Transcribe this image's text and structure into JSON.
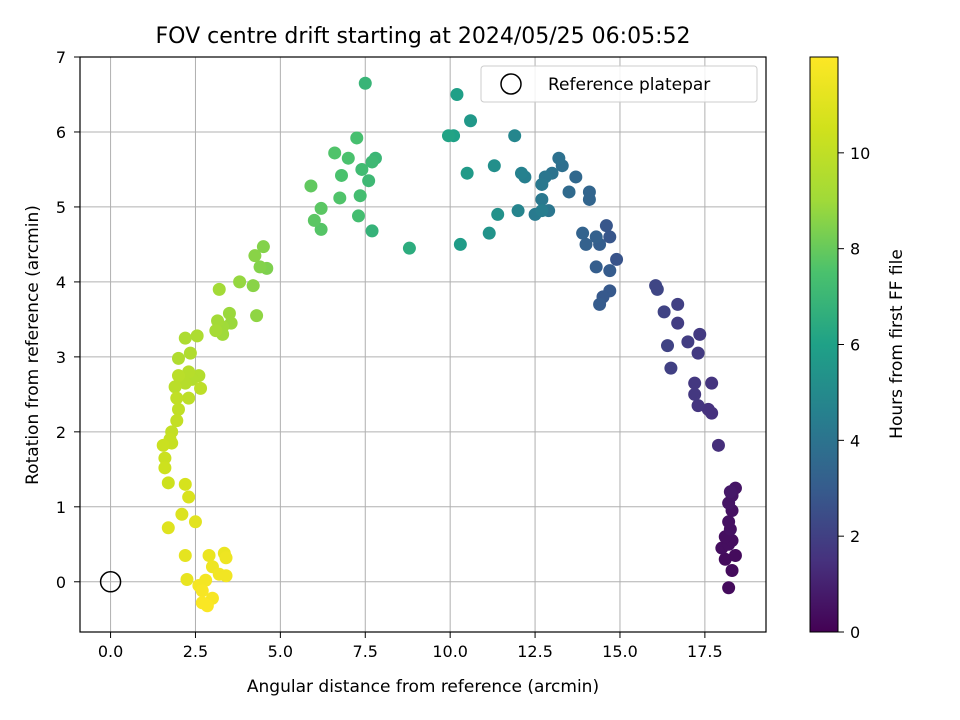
{
  "chart_data": {
    "type": "scatter",
    "title": "FOV centre drift starting at 2024/05/25 06:05:52",
    "xlabel": "Angular distance from reference (arcmin)",
    "ylabel": "Rotation from reference (arcmin)",
    "xlim": [
      -0.9,
      19.3
    ],
    "ylim": [
      -0.67,
      7.0
    ],
    "xticks": [
      0,
      2.5,
      5,
      7.5,
      10,
      12.5,
      15,
      17.5
    ],
    "xtick_labels": [
      "0.0",
      "2.5",
      "5.0",
      "7.5",
      "10.0",
      "12.5",
      "15.0",
      "17.5"
    ],
    "yticks": [
      0,
      1,
      2,
      3,
      4,
      5,
      6,
      7
    ],
    "ytick_labels": [
      "0",
      "1",
      "2",
      "3",
      "4",
      "5",
      "6",
      "7"
    ],
    "grid": true,
    "legend": {
      "position": "top-right",
      "entries": [
        {
          "label": "Reference platepar",
          "marker": "open-circle"
        }
      ]
    },
    "colorbar": {
      "label": "Hours from first FF file",
      "colormap": "viridis",
      "range": [
        0,
        12
      ],
      "ticks": [
        0,
        2,
        4,
        6,
        8,
        10
      ],
      "tick_labels": [
        "0",
        "2",
        "4",
        "6",
        "8",
        "10"
      ]
    },
    "reference_point": {
      "x": 0.0,
      "y": 0.0
    },
    "series": [
      {
        "color_by": "hours",
        "points": [
          [
            18.2,
            -0.08,
            0.3
          ],
          [
            18.3,
            0.15,
            0.3
          ],
          [
            18.1,
            0.3,
            0.3
          ],
          [
            18.4,
            0.35,
            0.3
          ],
          [
            18.0,
            0.45,
            0.4
          ],
          [
            18.2,
            0.5,
            0.4
          ],
          [
            18.3,
            0.55,
            0.4
          ],
          [
            18.1,
            0.6,
            0.4
          ],
          [
            18.25,
            0.7,
            0.5
          ],
          [
            18.2,
            0.8,
            0.5
          ],
          [
            18.3,
            0.95,
            0.5
          ],
          [
            18.2,
            1.05,
            0.6
          ],
          [
            18.3,
            1.15,
            0.6
          ],
          [
            18.4,
            1.25,
            0.6
          ],
          [
            18.25,
            1.2,
            0.7
          ],
          [
            17.9,
            1.82,
            1.4
          ],
          [
            17.7,
            2.25,
            1.5
          ],
          [
            17.6,
            2.3,
            1.5
          ],
          [
            17.7,
            2.65,
            1.6
          ],
          [
            17.3,
            2.35,
            1.6
          ],
          [
            17.2,
            2.5,
            1.7
          ],
          [
            17.2,
            2.65,
            1.7
          ],
          [
            17.3,
            3.05,
            1.8
          ],
          [
            17.35,
            3.3,
            1.8
          ],
          [
            17.0,
            3.2,
            1.9
          ],
          [
            16.7,
            3.45,
            1.9
          ],
          [
            16.7,
            3.7,
            2.0
          ],
          [
            16.5,
            2.85,
            2.0
          ],
          [
            16.4,
            3.15,
            2.1
          ],
          [
            16.3,
            3.6,
            2.1
          ],
          [
            16.1,
            3.9,
            2.2
          ],
          [
            16.05,
            3.95,
            2.2
          ],
          [
            14.9,
            4.3,
            2.7
          ],
          [
            14.7,
            4.6,
            2.8
          ],
          [
            14.6,
            4.75,
            2.8
          ],
          [
            14.7,
            3.88,
            2.9
          ],
          [
            14.5,
            3.8,
            2.9
          ],
          [
            14.4,
            3.7,
            3.0
          ],
          [
            14.7,
            4.15,
            3.0
          ],
          [
            14.3,
            4.2,
            3.1
          ],
          [
            14.4,
            4.5,
            3.1
          ],
          [
            14.3,
            4.6,
            3.2
          ],
          [
            14.0,
            4.5,
            3.2
          ],
          [
            13.9,
            4.65,
            3.3
          ],
          [
            14.1,
            5.2,
            3.4
          ],
          [
            14.1,
            5.1,
            3.4
          ],
          [
            13.7,
            5.4,
            3.5
          ],
          [
            13.5,
            5.2,
            3.6
          ],
          [
            13.3,
            5.55,
            3.8
          ],
          [
            13.2,
            5.65,
            3.9
          ],
          [
            13.0,
            5.45,
            4.0
          ],
          [
            12.8,
            5.4,
            4.1
          ],
          [
            12.9,
            4.95,
            4.1
          ],
          [
            12.7,
            5.3,
            4.2
          ],
          [
            12.7,
            5.1,
            4.2
          ],
          [
            12.5,
            4.9,
            4.3
          ],
          [
            12.7,
            4.95,
            4.4
          ],
          [
            12.2,
            5.4,
            4.5
          ],
          [
            12.1,
            5.45,
            4.6
          ],
          [
            12.0,
            4.95,
            4.7
          ],
          [
            11.9,
            5.95,
            4.8
          ],
          [
            11.3,
            5.55,
            5.2
          ],
          [
            11.4,
            4.9,
            5.3
          ],
          [
            11.15,
            4.65,
            5.4
          ],
          [
            10.6,
            6.15,
            5.6
          ],
          [
            10.5,
            5.45,
            5.7
          ],
          [
            10.3,
            4.5,
            5.8
          ],
          [
            10.2,
            6.5,
            5.9
          ],
          [
            10.1,
            5.95,
            6.0
          ],
          [
            9.95,
            5.95,
            6.1
          ],
          [
            8.8,
            4.45,
            6.5
          ],
          [
            7.7,
            4.68,
            6.8
          ],
          [
            7.5,
            6.65,
            6.9
          ],
          [
            7.8,
            5.65,
            7.0
          ],
          [
            7.7,
            5.6,
            7.1
          ],
          [
            7.6,
            5.35,
            7.1
          ],
          [
            7.4,
            5.5,
            7.2
          ],
          [
            7.35,
            5.15,
            7.3
          ],
          [
            7.3,
            4.88,
            7.3
          ],
          [
            7.25,
            5.92,
            7.4
          ],
          [
            7.0,
            5.65,
            7.5
          ],
          [
            6.8,
            5.42,
            7.5
          ],
          [
            6.75,
            5.12,
            7.6
          ],
          [
            6.6,
            5.72,
            7.6
          ],
          [
            6.2,
            4.7,
            7.7
          ],
          [
            6.2,
            4.98,
            7.8
          ],
          [
            6.0,
            4.82,
            7.8
          ],
          [
            5.9,
            5.28,
            7.9
          ],
          [
            4.6,
            4.18,
            8.4
          ],
          [
            4.5,
            4.47,
            8.5
          ],
          [
            4.4,
            4.2,
            8.5
          ],
          [
            4.25,
            4.35,
            8.6
          ],
          [
            4.2,
            3.95,
            8.6
          ],
          [
            4.3,
            3.55,
            8.7
          ],
          [
            3.8,
            4.0,
            8.8
          ],
          [
            3.5,
            3.58,
            8.9
          ],
          [
            3.55,
            3.45,
            8.9
          ],
          [
            3.3,
            3.4,
            9.0
          ],
          [
            3.3,
            3.3,
            9.0
          ],
          [
            3.15,
            3.48,
            9.1
          ],
          [
            3.2,
            3.9,
            9.1
          ],
          [
            3.1,
            3.35,
            9.2
          ],
          [
            2.55,
            3.28,
            9.4
          ],
          [
            2.2,
            3.25,
            9.4
          ],
          [
            2.35,
            3.05,
            9.5
          ],
          [
            2.0,
            2.98,
            9.5
          ],
          [
            2.6,
            2.75,
            9.6
          ],
          [
            2.4,
            2.7,
            9.6
          ],
          [
            2.3,
            2.8,
            9.7
          ],
          [
            2.2,
            2.65,
            9.7
          ],
          [
            2.0,
            2.75,
            9.8
          ],
          [
            1.9,
            2.6,
            9.8
          ],
          [
            2.65,
            2.58,
            9.9
          ],
          [
            2.3,
            2.45,
            9.9
          ],
          [
            1.95,
            2.45,
            10.0
          ],
          [
            2.0,
            2.3,
            10.0
          ],
          [
            1.95,
            2.15,
            10.1
          ],
          [
            1.8,
            2.0,
            10.1
          ],
          [
            1.75,
            1.9,
            10.2
          ],
          [
            1.8,
            1.85,
            10.2
          ],
          [
            1.55,
            1.82,
            10.3
          ],
          [
            1.6,
            1.65,
            10.3
          ],
          [
            1.6,
            1.52,
            10.4
          ],
          [
            1.7,
            1.32,
            10.4
          ],
          [
            2.2,
            1.3,
            10.7
          ],
          [
            2.3,
            1.13,
            10.8
          ],
          [
            2.1,
            0.9,
            10.9
          ],
          [
            1.7,
            0.72,
            11.0
          ],
          [
            2.5,
            0.8,
            11.1
          ],
          [
            2.2,
            0.35,
            11.2
          ],
          [
            2.25,
            0.03,
            11.3
          ],
          [
            2.9,
            0.35,
            11.4
          ],
          [
            3.35,
            0.38,
            11.4
          ],
          [
            3.4,
            0.32,
            11.5
          ],
          [
            3.0,
            0.2,
            11.5
          ],
          [
            3.2,
            0.1,
            11.6
          ],
          [
            3.4,
            0.08,
            11.6
          ],
          [
            2.8,
            0.02,
            11.7
          ],
          [
            2.6,
            -0.05,
            11.7
          ],
          [
            2.7,
            -0.12,
            11.8
          ],
          [
            3.0,
            -0.22,
            11.8
          ],
          [
            2.85,
            -0.32,
            11.9
          ],
          [
            2.7,
            -0.28,
            11.9
          ]
        ]
      }
    ]
  }
}
